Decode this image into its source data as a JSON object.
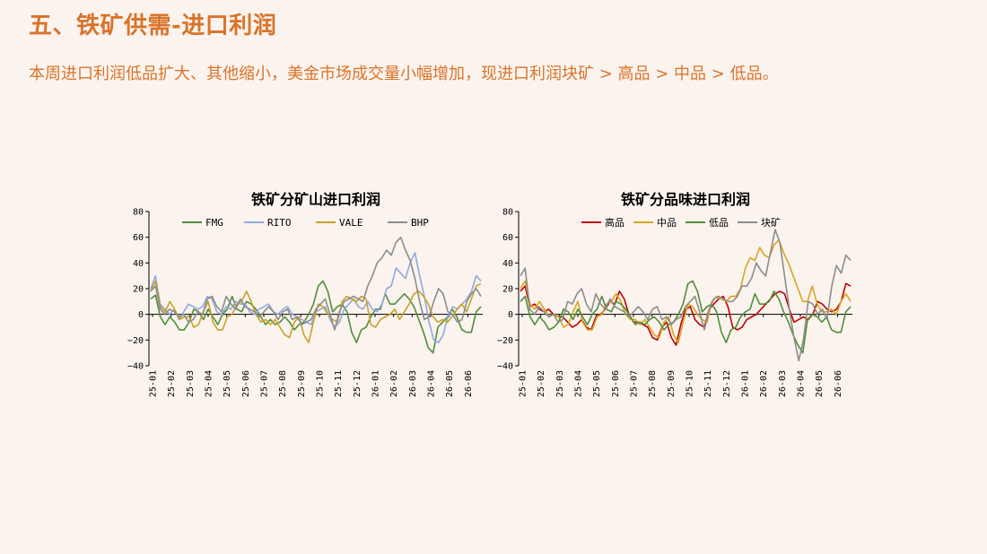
{
  "page": {
    "title": "五、铁矿供需-进口利润",
    "subtitle": "本周进口利润低品扩大、其他缩小，美金市场成交量小幅增加，现进口利润块矿 > 高品 > 中品 > 低品。"
  },
  "chart_data": [
    {
      "type": "line",
      "title": "铁矿分矿山进口利润",
      "ylim": [
        -40,
        80
      ],
      "yticks": [
        -40,
        -20,
        0,
        20,
        40,
        60,
        80
      ],
      "x_ticks": [
        "25-01",
        "25-02",
        "25-03",
        "25-04",
        "25-05",
        "25-06",
        "25-07",
        "25-08",
        "25-09",
        "25-10",
        "25-11",
        "25-12",
        "26-01",
        "26-02",
        "26-03",
        "26-04",
        "26-05",
        "26-06"
      ],
      "legend_position": "top",
      "series": [
        {
          "name": "FMG",
          "color": "#4e8f3a",
          "values": [
            12,
            15,
            -2,
            -8,
            -2,
            -6,
            -12,
            -12,
            -6,
            4,
            2,
            -4,
            4,
            -2,
            -8,
            0,
            4,
            14,
            4,
            2,
            10,
            8,
            4,
            -2,
            -8,
            -4,
            -8,
            -6,
            -2,
            -6,
            -12,
            -8,
            -6,
            0,
            8,
            22,
            26,
            18,
            2,
            6,
            8,
            2,
            -14,
            -22,
            -12,
            -10,
            -2,
            4,
            4,
            16,
            8,
            8,
            12,
            16,
            12,
            6,
            -4,
            -14,
            -26,
            -30,
            -10,
            -6,
            -2,
            4,
            -2,
            -12,
            -14,
            -14,
            2,
            6
          ]
        },
        {
          "name": "RITO",
          "color": "#8fa9e0",
          "values": [
            20,
            30,
            8,
            4,
            0,
            4,
            -4,
            2,
            8,
            6,
            4,
            6,
            14,
            12,
            2,
            0,
            6,
            4,
            10,
            8,
            8,
            2,
            0,
            4,
            6,
            8,
            2,
            0,
            4,
            6,
            0,
            -2,
            -4,
            -6,
            -8,
            2,
            4,
            6,
            -4,
            -10,
            -6,
            4,
            8,
            12,
            6,
            4,
            10,
            4,
            2,
            8,
            20,
            22,
            36,
            32,
            28,
            40,
            48,
            30,
            14,
            -6,
            -20,
            -22,
            -16,
            -2,
            6,
            4,
            8,
            12,
            18,
            30,
            26
          ]
        },
        {
          "name": "VALE",
          "color": "#c9a227",
          "values": [
            18,
            26,
            6,
            2,
            10,
            4,
            -4,
            -2,
            -2,
            -10,
            -8,
            2,
            10,
            -6,
            -12,
            -12,
            -2,
            0,
            8,
            10,
            18,
            10,
            0,
            -6,
            -4,
            -8,
            -4,
            -10,
            -16,
            -18,
            -6,
            -2,
            -16,
            -22,
            -6,
            8,
            6,
            0,
            -4,
            -6,
            10,
            14,
            12,
            10,
            14,
            12,
            -8,
            -10,
            -4,
            -2,
            0,
            4,
            -4,
            2,
            8,
            16,
            18,
            14,
            8,
            -2,
            -6,
            -4,
            -6,
            -2,
            4,
            8,
            2,
            12,
            22,
            24
          ]
        },
        {
          "name": "BHP",
          "color": "#8c8c8c",
          "values": [
            18,
            22,
            4,
            0,
            4,
            2,
            -2,
            0,
            -6,
            -4,
            2,
            0,
            12,
            14,
            6,
            2,
            14,
            8,
            4,
            12,
            6,
            4,
            2,
            -2,
            2,
            6,
            2,
            -4,
            2,
            4,
            -4,
            -2,
            -8,
            -6,
            -4,
            4,
            8,
            12,
            0,
            -12,
            2,
            10,
            12,
            14,
            12,
            10,
            22,
            30,
            40,
            44,
            50,
            46,
            56,
            60,
            50,
            42,
            28,
            10,
            -4,
            -2,
            10,
            20,
            16,
            2,
            0,
            -6,
            -4,
            10,
            16,
            20,
            14
          ]
        }
      ]
    },
    {
      "type": "line",
      "title": "铁矿分品味进口利润",
      "ylim": [
        -40,
        80
      ],
      "yticks": [
        -40,
        -20,
        0,
        20,
        40,
        60,
        80
      ],
      "x_ticks": [
        "25-01",
        "25-02",
        "25-03",
        "25-04",
        "25-05",
        "25-06",
        "25-07",
        "25-08",
        "25-09",
        "25-10",
        "25-11",
        "25-12",
        "26-01",
        "26-02",
        "26-03",
        "26-04",
        "26-05",
        "26-06"
      ],
      "legend_position": "top",
      "series": [
        {
          "name": "高品",
          "color": "#c00000",
          "values": [
            18,
            22,
            6,
            8,
            4,
            2,
            4,
            0,
            -2,
            -2,
            -6,
            -10,
            -8,
            -4,
            -10,
            -12,
            -2,
            0,
            4,
            10,
            8,
            18,
            12,
            0,
            -6,
            -6,
            -8,
            -10,
            -18,
            -20,
            -10,
            -6,
            -18,
            -24,
            -8,
            4,
            6,
            -4,
            -8,
            -10,
            4,
            8,
            12,
            14,
            6,
            -10,
            -12,
            -10,
            -4,
            -2,
            0,
            4,
            8,
            12,
            16,
            18,
            16,
            4,
            -6,
            -4,
            -2,
            -4,
            0,
            10,
            8,
            4,
            2,
            4,
            10,
            24,
            22
          ]
        },
        {
          "name": "中品",
          "color": "#d9a520",
          "values": [
            20,
            26,
            8,
            4,
            10,
            4,
            -2,
            0,
            -2,
            -10,
            -8,
            2,
            10,
            -6,
            -12,
            -12,
            -2,
            0,
            8,
            10,
            16,
            10,
            0,
            -4,
            -4,
            -8,
            -4,
            -10,
            -16,
            -18,
            -6,
            -2,
            -16,
            -22,
            -6,
            8,
            6,
            0,
            -4,
            -6,
            10,
            14,
            12,
            10,
            14,
            14,
            20,
            36,
            44,
            42,
            52,
            46,
            44,
            54,
            58,
            48,
            40,
            30,
            20,
            10,
            10,
            22,
            8,
            2,
            2,
            4,
            0,
            10,
            16,
            10
          ]
        },
        {
          "name": "低品",
          "color": "#4e8f3a",
          "values": [
            10,
            14,
            -2,
            -8,
            -2,
            -6,
            -12,
            -10,
            -6,
            4,
            2,
            -4,
            4,
            -2,
            -8,
            0,
            4,
            14,
            4,
            2,
            10,
            8,
            4,
            -2,
            -8,
            -6,
            -8,
            -4,
            -2,
            -6,
            -12,
            -8,
            -6,
            0,
            8,
            24,
            26,
            18,
            2,
            6,
            8,
            2,
            -14,
            -22,
            -12,
            -10,
            -2,
            2,
            4,
            16,
            8,
            8,
            10,
            18,
            12,
            2,
            -6,
            -16,
            -24,
            -30,
            -4,
            0,
            -2,
            -6,
            -2,
            -12,
            -14,
            -14,
            2,
            6
          ]
        },
        {
          "name": "块矿",
          "color": "#8c8c8c",
          "values": [
            30,
            36,
            4,
            0,
            6,
            2,
            -2,
            0,
            -6,
            -4,
            10,
            8,
            16,
            20,
            8,
            2,
            16,
            8,
            4,
            12,
            6,
            4,
            2,
            -2,
            2,
            6,
            2,
            -4,
            4,
            6,
            -4,
            -2,
            -8,
            -4,
            -2,
            6,
            10,
            14,
            2,
            -12,
            4,
            12,
            14,
            12,
            10,
            10,
            14,
            22,
            22,
            28,
            40,
            34,
            30,
            48,
            66,
            56,
            30,
            4,
            -18,
            -36,
            -20,
            10,
            8,
            0,
            4,
            -4,
            22,
            38,
            32,
            46,
            42
          ]
        }
      ]
    }
  ]
}
